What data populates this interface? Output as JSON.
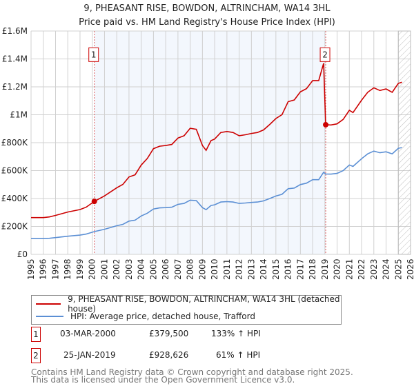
{
  "chart_data": {
    "type": "line",
    "title": "9, PHEASANT RISE, BOWDON, ALTRINCHAM, WA14 3HL",
    "subtitle": "Price paid vs. HM Land Registry's House Price Index (HPI)",
    "xlabel": "",
    "ylabel": "",
    "xlim": [
      1995,
      2026
    ],
    "ylim": [
      0,
      1600000
    ],
    "grid": true,
    "x_ticks": [
      "1995",
      "1996",
      "1997",
      "1998",
      "1999",
      "2000",
      "2001",
      "2002",
      "2003",
      "2004",
      "2005",
      "2006",
      "2007",
      "2008",
      "2009",
      "2010",
      "2011",
      "2012",
      "2013",
      "2014",
      "2015",
      "2016",
      "2017",
      "2018",
      "2019",
      "2020",
      "2021",
      "2022",
      "2023",
      "2024",
      "2025",
      "2026"
    ],
    "y_ticks": [
      {
        "v": 0,
        "label": "£0"
      },
      {
        "v": 200000,
        "label": "£200K"
      },
      {
        "v": 400000,
        "label": "£400K"
      },
      {
        "v": 600000,
        "label": "£600K"
      },
      {
        "v": 800000,
        "label": "£800K"
      },
      {
        "v": 1000000,
        "label": "£1M"
      },
      {
        "v": 1200000,
        "label": "£1.2M"
      },
      {
        "v": 1400000,
        "label": "£1.4M"
      },
      {
        "v": 1600000,
        "label": "£1.6M"
      }
    ],
    "shaded_period": [
      2000.17,
      2019.07
    ],
    "forecast_hatched_from": 2025.0,
    "series": [
      {
        "name": "9, PHEASANT RISE, BOWDON, ALTRINCHAM, WA14 3HL (detached house)",
        "color": "#cc0000",
        "points": [
          [
            1995,
            263
          ],
          [
            1996,
            263
          ],
          [
            1996.5,
            268
          ],
          [
            1997,
            279
          ],
          [
            1998,
            303
          ],
          [
            1999,
            321
          ],
          [
            1999.5,
            338
          ],
          [
            2000.17,
            379.5
          ],
          [
            2001,
            419
          ],
          [
            2002,
            477
          ],
          [
            2002.5,
            501
          ],
          [
            2003,
            554
          ],
          [
            2003.5,
            570
          ],
          [
            2004,
            640
          ],
          [
            2004.5,
            687
          ],
          [
            2005,
            757
          ],
          [
            2005.5,
            775
          ],
          [
            2006,
            780
          ],
          [
            2006.5,
            787
          ],
          [
            2007,
            833
          ],
          [
            2007.5,
            850
          ],
          [
            2008,
            903
          ],
          [
            2008.5,
            896
          ],
          [
            2009,
            780
          ],
          [
            2009.3,
            745
          ],
          [
            2009.7,
            815
          ],
          [
            2010,
            826
          ],
          [
            2010.5,
            873
          ],
          [
            2011,
            880
          ],
          [
            2011.5,
            873
          ],
          [
            2012,
            850
          ],
          [
            2012.5,
            857
          ],
          [
            2013,
            866
          ],
          [
            2013.5,
            873
          ],
          [
            2014,
            892
          ],
          [
            2014.5,
            931
          ],
          [
            2015,
            973
          ],
          [
            2015.5,
            1001
          ],
          [
            2016,
            1094
          ],
          [
            2016.5,
            1106
          ],
          [
            2017,
            1164
          ],
          [
            2017.5,
            1187
          ],
          [
            2018,
            1245
          ],
          [
            2018.5,
            1245
          ],
          [
            2018.9,
            1369
          ],
          [
            2019.07,
            928.6
          ],
          [
            2019.5,
            927
          ],
          [
            2020,
            935
          ],
          [
            2020.5,
            967
          ],
          [
            2021,
            1032
          ],
          [
            2021.3,
            1016
          ],
          [
            2022,
            1104
          ],
          [
            2022.5,
            1161
          ],
          [
            2023,
            1193
          ],
          [
            2023.5,
            1174
          ],
          [
            2024,
            1185
          ],
          [
            2024.5,
            1161
          ],
          [
            2025,
            1225
          ],
          [
            2025.3,
            1233
          ]
        ]
      },
      {
        "name": "HPI: Average price, detached house, Trafford",
        "color": "#5b8fd4",
        "points": [
          [
            1995,
            113
          ],
          [
            1996,
            113
          ],
          [
            1996.5,
            115
          ],
          [
            1997,
            120
          ],
          [
            1998,
            130
          ],
          [
            1999,
            138
          ],
          [
            1999.5,
            145
          ],
          [
            2000.17,
            163
          ],
          [
            2001,
            180
          ],
          [
            2002,
            205
          ],
          [
            2002.5,
            215
          ],
          [
            2003,
            238
          ],
          [
            2003.5,
            245
          ],
          [
            2004,
            275
          ],
          [
            2004.5,
            295
          ],
          [
            2005,
            325
          ],
          [
            2005.5,
            333
          ],
          [
            2006,
            335
          ],
          [
            2006.5,
            338
          ],
          [
            2007,
            358
          ],
          [
            2007.5,
            365
          ],
          [
            2008,
            388
          ],
          [
            2008.5,
            385
          ],
          [
            2009,
            335
          ],
          [
            2009.3,
            320
          ],
          [
            2009.7,
            350
          ],
          [
            2010,
            355
          ],
          [
            2010.5,
            375
          ],
          [
            2011,
            378
          ],
          [
            2011.5,
            375
          ],
          [
            2012,
            365
          ],
          [
            2012.5,
            368
          ],
          [
            2013,
            372
          ],
          [
            2013.5,
            375
          ],
          [
            2014,
            383
          ],
          [
            2014.5,
            400
          ],
          [
            2015,
            418
          ],
          [
            2015.5,
            430
          ],
          [
            2016,
            470
          ],
          [
            2016.5,
            475
          ],
          [
            2017,
            500
          ],
          [
            2017.5,
            510
          ],
          [
            2018,
            535
          ],
          [
            2018.5,
            535
          ],
          [
            2018.9,
            588
          ],
          [
            2019.07,
            576
          ],
          [
            2019.5,
            575
          ],
          [
            2020,
            580
          ],
          [
            2020.5,
            600
          ],
          [
            2021,
            640
          ],
          [
            2021.3,
            630
          ],
          [
            2022,
            685
          ],
          [
            2022.5,
            720
          ],
          [
            2023,
            740
          ],
          [
            2023.5,
            728
          ],
          [
            2024,
            735
          ],
          [
            2024.5,
            720
          ],
          [
            2025,
            760
          ],
          [
            2025.3,
            765
          ]
        ]
      }
    ],
    "point_units": "thousands GBP",
    "annotations": [
      {
        "label": "1",
        "x": 2000.17,
        "y": 379500
      },
      {
        "label": "2",
        "x": 2019.07,
        "y": 928626
      }
    ]
  },
  "legend": {
    "red_label": "9, PHEASANT RISE, BOWDON, ALTRINCHAM, WA14 3HL (detached house)",
    "blue_label": "HPI: Average price, detached house, Trafford"
  },
  "sales": [
    {
      "num": "1",
      "date": "03-MAR-2000",
      "price": "£379,500",
      "hpi": "133% ↑ HPI"
    },
    {
      "num": "2",
      "date": "25-JAN-2019",
      "price": "£928,626",
      "hpi": "61% ↑ HPI"
    }
  ],
  "footer": {
    "line1": "Contains HM Land Registry data © Crown copyright and database right 2025.",
    "line2": "This data is licensed under the Open Government Licence v3.0."
  }
}
